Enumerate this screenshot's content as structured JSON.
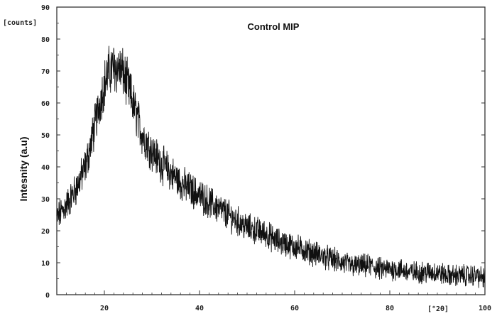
{
  "chart_data": {
    "type": "line",
    "title": "Control MIP",
    "ylabel": "Intesnity (a.u)",
    "y_unit_label": "[counts]",
    "x_unit_label": "[°2θ]",
    "xlim": [
      10,
      100
    ],
    "ylim": [
      0,
      90
    ],
    "x_ticks": [
      "20",
      "40",
      "60",
      "80",
      "100"
    ],
    "y_ticks": [
      "0",
      "10",
      "20",
      "30",
      "40",
      "50",
      "60",
      "70",
      "80",
      "90"
    ],
    "grid": false,
    "line_color": "#111111",
    "series": [
      {
        "x": [
          10,
          12,
          14,
          16,
          17,
          18,
          19,
          20,
          21,
          22,
          23,
          24,
          25,
          26,
          27,
          28,
          30,
          32,
          34,
          36,
          38,
          40,
          42,
          44,
          46,
          48,
          50,
          52,
          54,
          56,
          58,
          60,
          62,
          64,
          66,
          68,
          70,
          72,
          74,
          76,
          78,
          80,
          82,
          84,
          86,
          88,
          90,
          92,
          94,
          96,
          98,
          100
        ],
        "values": [
          24,
          28,
          33,
          40,
          46,
          53,
          60,
          66,
          70,
          71,
          71,
          69,
          65,
          60,
          55,
          50,
          45,
          41,
          38,
          35,
          33,
          31,
          29,
          27,
          25,
          23,
          21,
          20,
          19,
          17,
          16,
          15,
          14,
          13,
          12,
          11,
          10,
          9,
          9,
          9,
          8,
          8,
          8,
          7,
          7,
          7,
          7,
          6,
          6,
          6,
          6,
          5
        ]
      }
    ]
  }
}
